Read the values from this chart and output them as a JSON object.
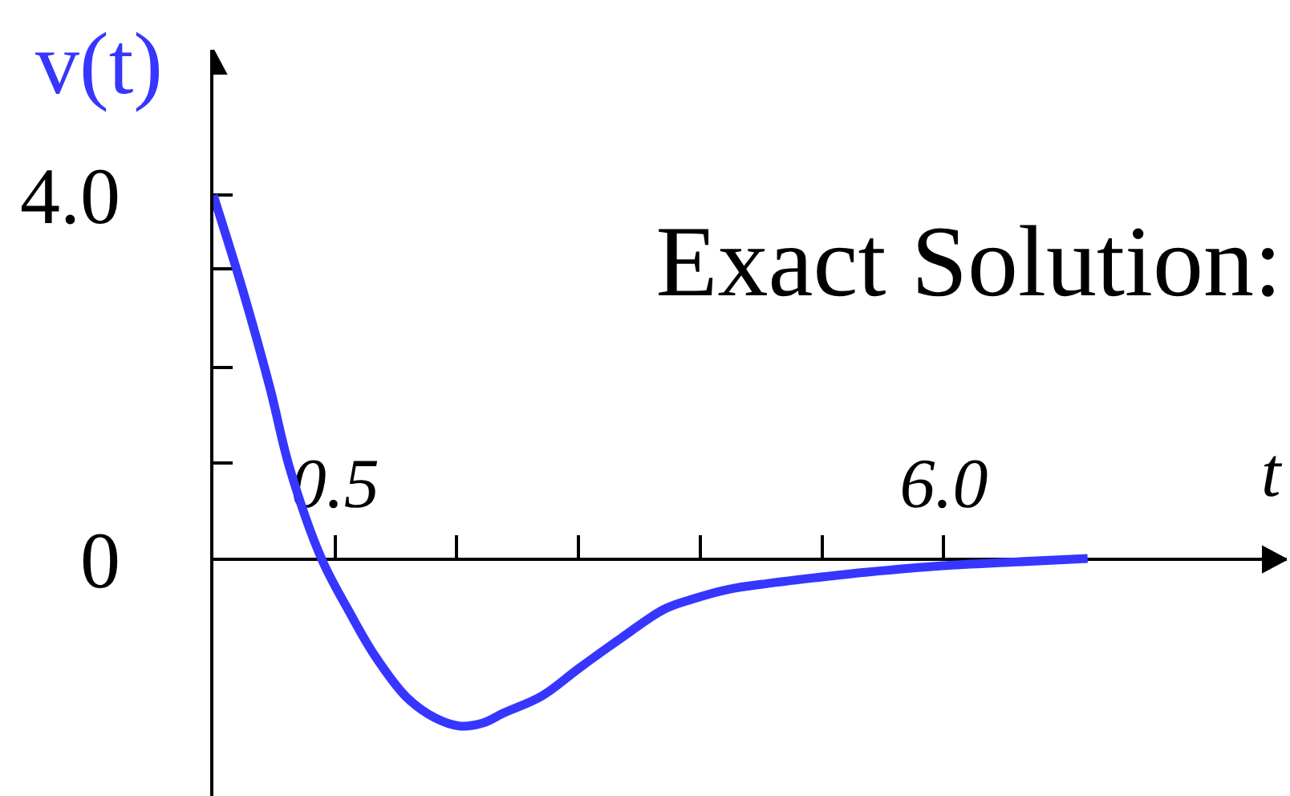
{
  "chart_data": {
    "type": "line",
    "title": "Exact Solution:",
    "xlabel": "t",
    "ylabel": "v(t)",
    "x": [
      -0.6,
      -0.34,
      -0.09,
      0.09,
      0.38,
      0.63,
      0.86,
      1.15,
      1.4,
      1.62,
      1.83,
      2.02,
      2.37,
      2.7,
      3.09,
      3.47,
      3.72,
      4.05,
      4.44,
      4.92,
      5.31,
      5.99,
      6.62,
      7.3
    ],
    "series": [
      {
        "color": "#3636ff",
        "values": [
          4.0,
          2.98,
          1.89,
          1.0,
          0.0,
          -0.58,
          -1.06,
          -1.52,
          -1.74,
          -1.83,
          -1.8,
          -1.69,
          -1.5,
          -1.2,
          -0.86,
          -0.55,
          -0.44,
          -0.33,
          -0.26,
          -0.19,
          -0.14,
          -0.07,
          -0.03,
          0.01
        ]
      }
    ],
    "xlim": [
      -0.6,
      9.1
    ],
    "ylim": [
      -2.6,
      5.6
    ],
    "xticks": [
      0.5,
      {
        "value": 1.6,
        "label": null
      },
      {
        "value": 2.7,
        "label": null
      },
      {
        "value": 3.8,
        "label": null
      },
      {
        "value": 4.9,
        "label": null
      },
      {
        "value": 6,
        "label": "6.0"
      }
    ],
    "yticks": [
      0,
      {
        "value": 1.06,
        "label": null
      },
      {
        "value": 2.11,
        "label": null
      },
      {
        "value": 3.19,
        "label": null
      },
      {
        "value": 4,
        "label": "4.0"
      }
    ]
  }
}
